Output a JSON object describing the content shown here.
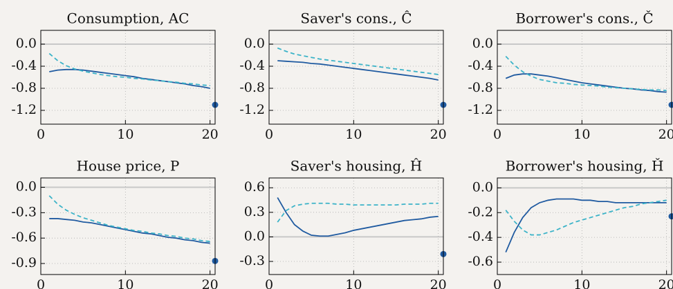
{
  "chart_data": [
    {
      "type": "line",
      "title": "Consumption, AC",
      "xlim": [
        0,
        20.6
      ],
      "xticks": [
        0,
        10,
        20
      ],
      "ylim": [
        -1.45,
        0.25
      ],
      "yticks": [
        {
          "value": 0,
          "label": "0.0"
        },
        -0.4,
        -0.8,
        -1.2
      ],
      "grid": true,
      "zero_line": true,
      "series": [
        {
          "color": "#1f5aa0",
          "dash": false,
          "x": [
            1,
            2,
            3,
            4,
            5,
            6,
            7,
            8,
            9,
            10,
            11,
            12,
            13,
            14,
            15,
            16,
            17,
            18,
            19,
            20
          ],
          "values": [
            -0.5,
            -0.47,
            -0.46,
            -0.46,
            -0.47,
            -0.49,
            -0.51,
            -0.53,
            -0.55,
            -0.57,
            -0.59,
            -0.62,
            -0.64,
            -0.66,
            -0.68,
            -0.7,
            -0.72,
            -0.75,
            -0.77,
            -0.8
          ]
        },
        {
          "color": "#3bb3c8",
          "dash": true,
          "x": [
            1,
            2,
            3,
            4,
            5,
            6,
            7,
            8,
            9,
            10,
            11,
            12,
            13,
            14,
            15,
            16,
            17,
            18,
            19,
            20
          ],
          "values": [
            -0.17,
            -0.3,
            -0.39,
            -0.45,
            -0.49,
            -0.52,
            -0.55,
            -0.57,
            -0.59,
            -0.6,
            -0.62,
            -0.63,
            -0.65,
            -0.66,
            -0.68,
            -0.69,
            -0.71,
            -0.72,
            -0.74,
            -0.75
          ]
        },
        {
          "color": "#1f5aa0",
          "marker": "dot",
          "x": [
            20.6
          ],
          "values": [
            -1.1
          ]
        }
      ]
    },
    {
      "type": "line",
      "title": "Saver's cons., Ĉ",
      "xlim": [
        0,
        20.6
      ],
      "xticks": [
        0,
        10,
        20
      ],
      "ylim": [
        -1.45,
        0.25
      ],
      "yticks": [
        {
          "value": 0,
          "label": "0.0"
        },
        -0.4,
        -0.8,
        -1.2
      ],
      "grid": true,
      "zero_line": true,
      "series": [
        {
          "color": "#1f5aa0",
          "dash": false,
          "x": [
            1,
            2,
            3,
            4,
            5,
            6,
            7,
            8,
            9,
            10,
            11,
            12,
            13,
            14,
            15,
            16,
            17,
            18,
            19,
            20
          ],
          "values": [
            -0.3,
            -0.31,
            -0.32,
            -0.33,
            -0.35,
            -0.36,
            -0.38,
            -0.4,
            -0.42,
            -0.44,
            -0.46,
            -0.48,
            -0.5,
            -0.52,
            -0.54,
            -0.56,
            -0.58,
            -0.6,
            -0.62,
            -0.65
          ]
        },
        {
          "color": "#3bb3c8",
          "dash": true,
          "x": [
            1,
            2,
            3,
            4,
            5,
            6,
            7,
            8,
            9,
            10,
            11,
            12,
            13,
            14,
            15,
            16,
            17,
            18,
            19,
            20
          ],
          "values": [
            -0.07,
            -0.13,
            -0.18,
            -0.21,
            -0.24,
            -0.27,
            -0.29,
            -0.31,
            -0.33,
            -0.35,
            -0.37,
            -0.39,
            -0.41,
            -0.43,
            -0.45,
            -0.47,
            -0.49,
            -0.51,
            -0.53,
            -0.55
          ]
        },
        {
          "color": "#1f5aa0",
          "marker": "dot",
          "x": [
            20.6
          ],
          "values": [
            -1.1
          ]
        }
      ]
    },
    {
      "type": "line",
      "title": "Borrower's cons., Č",
      "xlim": [
        0,
        20.6
      ],
      "xticks": [
        0,
        10,
        20
      ],
      "ylim": [
        -1.45,
        0.25
      ],
      "yticks": [
        {
          "value": 0,
          "label": "0.0"
        },
        -0.4,
        -0.8,
        -1.2
      ],
      "grid": true,
      "zero_line": true,
      "series": [
        {
          "color": "#1f5aa0",
          "dash": false,
          "x": [
            1,
            2,
            3,
            4,
            5,
            6,
            7,
            8,
            9,
            10,
            11,
            12,
            13,
            14,
            15,
            16,
            17,
            18,
            19,
            20
          ],
          "values": [
            -0.62,
            -0.56,
            -0.54,
            -0.54,
            -0.56,
            -0.58,
            -0.61,
            -0.64,
            -0.67,
            -0.7,
            -0.72,
            -0.74,
            -0.76,
            -0.78,
            -0.8,
            -0.81,
            -0.83,
            -0.84,
            -0.86,
            -0.87
          ]
        },
        {
          "color": "#3bb3c8",
          "dash": true,
          "x": [
            1,
            2,
            3,
            4,
            5,
            6,
            7,
            8,
            9,
            10,
            11,
            12,
            13,
            14,
            15,
            16,
            17,
            18,
            19,
            20
          ],
          "values": [
            -0.22,
            -0.38,
            -0.5,
            -0.58,
            -0.64,
            -0.67,
            -0.7,
            -0.71,
            -0.73,
            -0.74,
            -0.75,
            -0.76,
            -0.78,
            -0.79,
            -0.8,
            -0.81,
            -0.82,
            -0.83,
            -0.83,
            -0.84
          ]
        },
        {
          "color": "#1f5aa0",
          "marker": "dot",
          "x": [
            20.6
          ],
          "values": [
            -1.1
          ]
        }
      ]
    },
    {
      "type": "line",
      "title": "House price, P",
      "xlim": [
        0,
        20.6
      ],
      "xticks": [
        0,
        10,
        20
      ],
      "ylim": [
        -1.03,
        0.11
      ],
      "yticks": [
        {
          "value": 0,
          "label": "0.0"
        },
        -0.3,
        -0.6,
        -0.9
      ],
      "grid": true,
      "zero_line": true,
      "series": [
        {
          "color": "#1f5aa0",
          "dash": false,
          "x": [
            1,
            2,
            3,
            4,
            5,
            6,
            7,
            8,
            9,
            10,
            11,
            12,
            13,
            14,
            15,
            16,
            17,
            18,
            19,
            20
          ],
          "values": [
            -0.37,
            -0.37,
            -0.38,
            -0.39,
            -0.41,
            -0.42,
            -0.44,
            -0.46,
            -0.48,
            -0.5,
            -0.52,
            -0.54,
            -0.55,
            -0.57,
            -0.59,
            -0.6,
            -0.62,
            -0.63,
            -0.65,
            -0.66
          ]
        },
        {
          "color": "#3bb3c8",
          "dash": true,
          "x": [
            1,
            2,
            3,
            4,
            5,
            6,
            7,
            8,
            9,
            10,
            11,
            12,
            13,
            14,
            15,
            16,
            17,
            18,
            19,
            20
          ],
          "values": [
            -0.1,
            -0.2,
            -0.27,
            -0.32,
            -0.36,
            -0.39,
            -0.42,
            -0.45,
            -0.47,
            -0.49,
            -0.51,
            -0.52,
            -0.54,
            -0.55,
            -0.57,
            -0.58,
            -0.6,
            -0.61,
            -0.63,
            -0.64
          ]
        },
        {
          "color": "#1f5aa0",
          "marker": "dot",
          "x": [
            20.6
          ],
          "values": [
            -0.87
          ]
        }
      ]
    },
    {
      "type": "line",
      "title": "Saver's housing, Ĥ",
      "xlim": [
        0,
        20.6
      ],
      "xticks": [
        0,
        10,
        20
      ],
      "ylim": [
        -0.46,
        0.72
      ],
      "yticks": [
        0.6,
        0.3,
        {
          "value": 0,
          "label": "0.0"
        },
        -0.3
      ],
      "grid": true,
      "zero_line": true,
      "series": [
        {
          "color": "#1f5aa0",
          "dash": false,
          "x": [
            1,
            2,
            3,
            4,
            5,
            6,
            7,
            8,
            9,
            10,
            11,
            12,
            13,
            14,
            15,
            16,
            17,
            18,
            19,
            20
          ],
          "values": [
            0.48,
            0.3,
            0.15,
            0.07,
            0.02,
            0.01,
            0.01,
            0.03,
            0.05,
            0.08,
            0.1,
            0.12,
            0.14,
            0.16,
            0.18,
            0.2,
            0.21,
            0.22,
            0.24,
            0.25
          ]
        },
        {
          "color": "#3bb3c8",
          "dash": true,
          "x": [
            1,
            2,
            3,
            4,
            5,
            6,
            7,
            8,
            9,
            10,
            11,
            12,
            13,
            14,
            15,
            16,
            17,
            18,
            19,
            20
          ],
          "values": [
            0.18,
            0.32,
            0.38,
            0.4,
            0.41,
            0.41,
            0.41,
            0.4,
            0.4,
            0.39,
            0.39,
            0.39,
            0.39,
            0.39,
            0.39,
            0.4,
            0.4,
            0.4,
            0.41,
            0.41
          ]
        },
        {
          "color": "#1f5aa0",
          "marker": "dot",
          "x": [
            20.6
          ],
          "values": [
            -0.21
          ]
        }
      ]
    },
    {
      "type": "line",
      "title": "Borrower's housing, Ȟ",
      "xlim": [
        0,
        20.6
      ],
      "xticks": [
        0,
        10,
        20
      ],
      "ylim": [
        -0.7,
        0.08
      ],
      "yticks": [
        {
          "value": 0,
          "label": "0.0"
        },
        -0.2,
        -0.4,
        -0.6
      ],
      "grid": true,
      "zero_line": true,
      "series": [
        {
          "color": "#1f5aa0",
          "dash": false,
          "x": [
            1,
            2,
            3,
            4,
            5,
            6,
            7,
            8,
            9,
            10,
            11,
            12,
            13,
            14,
            15,
            16,
            17,
            18,
            19,
            20
          ],
          "values": [
            -0.52,
            -0.36,
            -0.24,
            -0.16,
            -0.12,
            -0.1,
            -0.09,
            -0.09,
            -0.09,
            -0.1,
            -0.1,
            -0.11,
            -0.11,
            -0.12,
            -0.12,
            -0.12,
            -0.12,
            -0.12,
            -0.12,
            -0.12
          ]
        },
        {
          "color": "#3bb3c8",
          "dash": true,
          "x": [
            1,
            2,
            3,
            4,
            5,
            6,
            7,
            8,
            9,
            10,
            11,
            12,
            13,
            14,
            15,
            16,
            17,
            18,
            19,
            20
          ],
          "values": [
            -0.18,
            -0.27,
            -0.34,
            -0.38,
            -0.38,
            -0.36,
            -0.34,
            -0.31,
            -0.28,
            -0.26,
            -0.24,
            -0.22,
            -0.2,
            -0.18,
            -0.16,
            -0.15,
            -0.13,
            -0.12,
            -0.11,
            -0.1
          ]
        },
        {
          "color": "#1f5aa0",
          "marker": "dot",
          "x": [
            20.6
          ],
          "values": [
            -0.23
          ]
        }
      ]
    }
  ]
}
